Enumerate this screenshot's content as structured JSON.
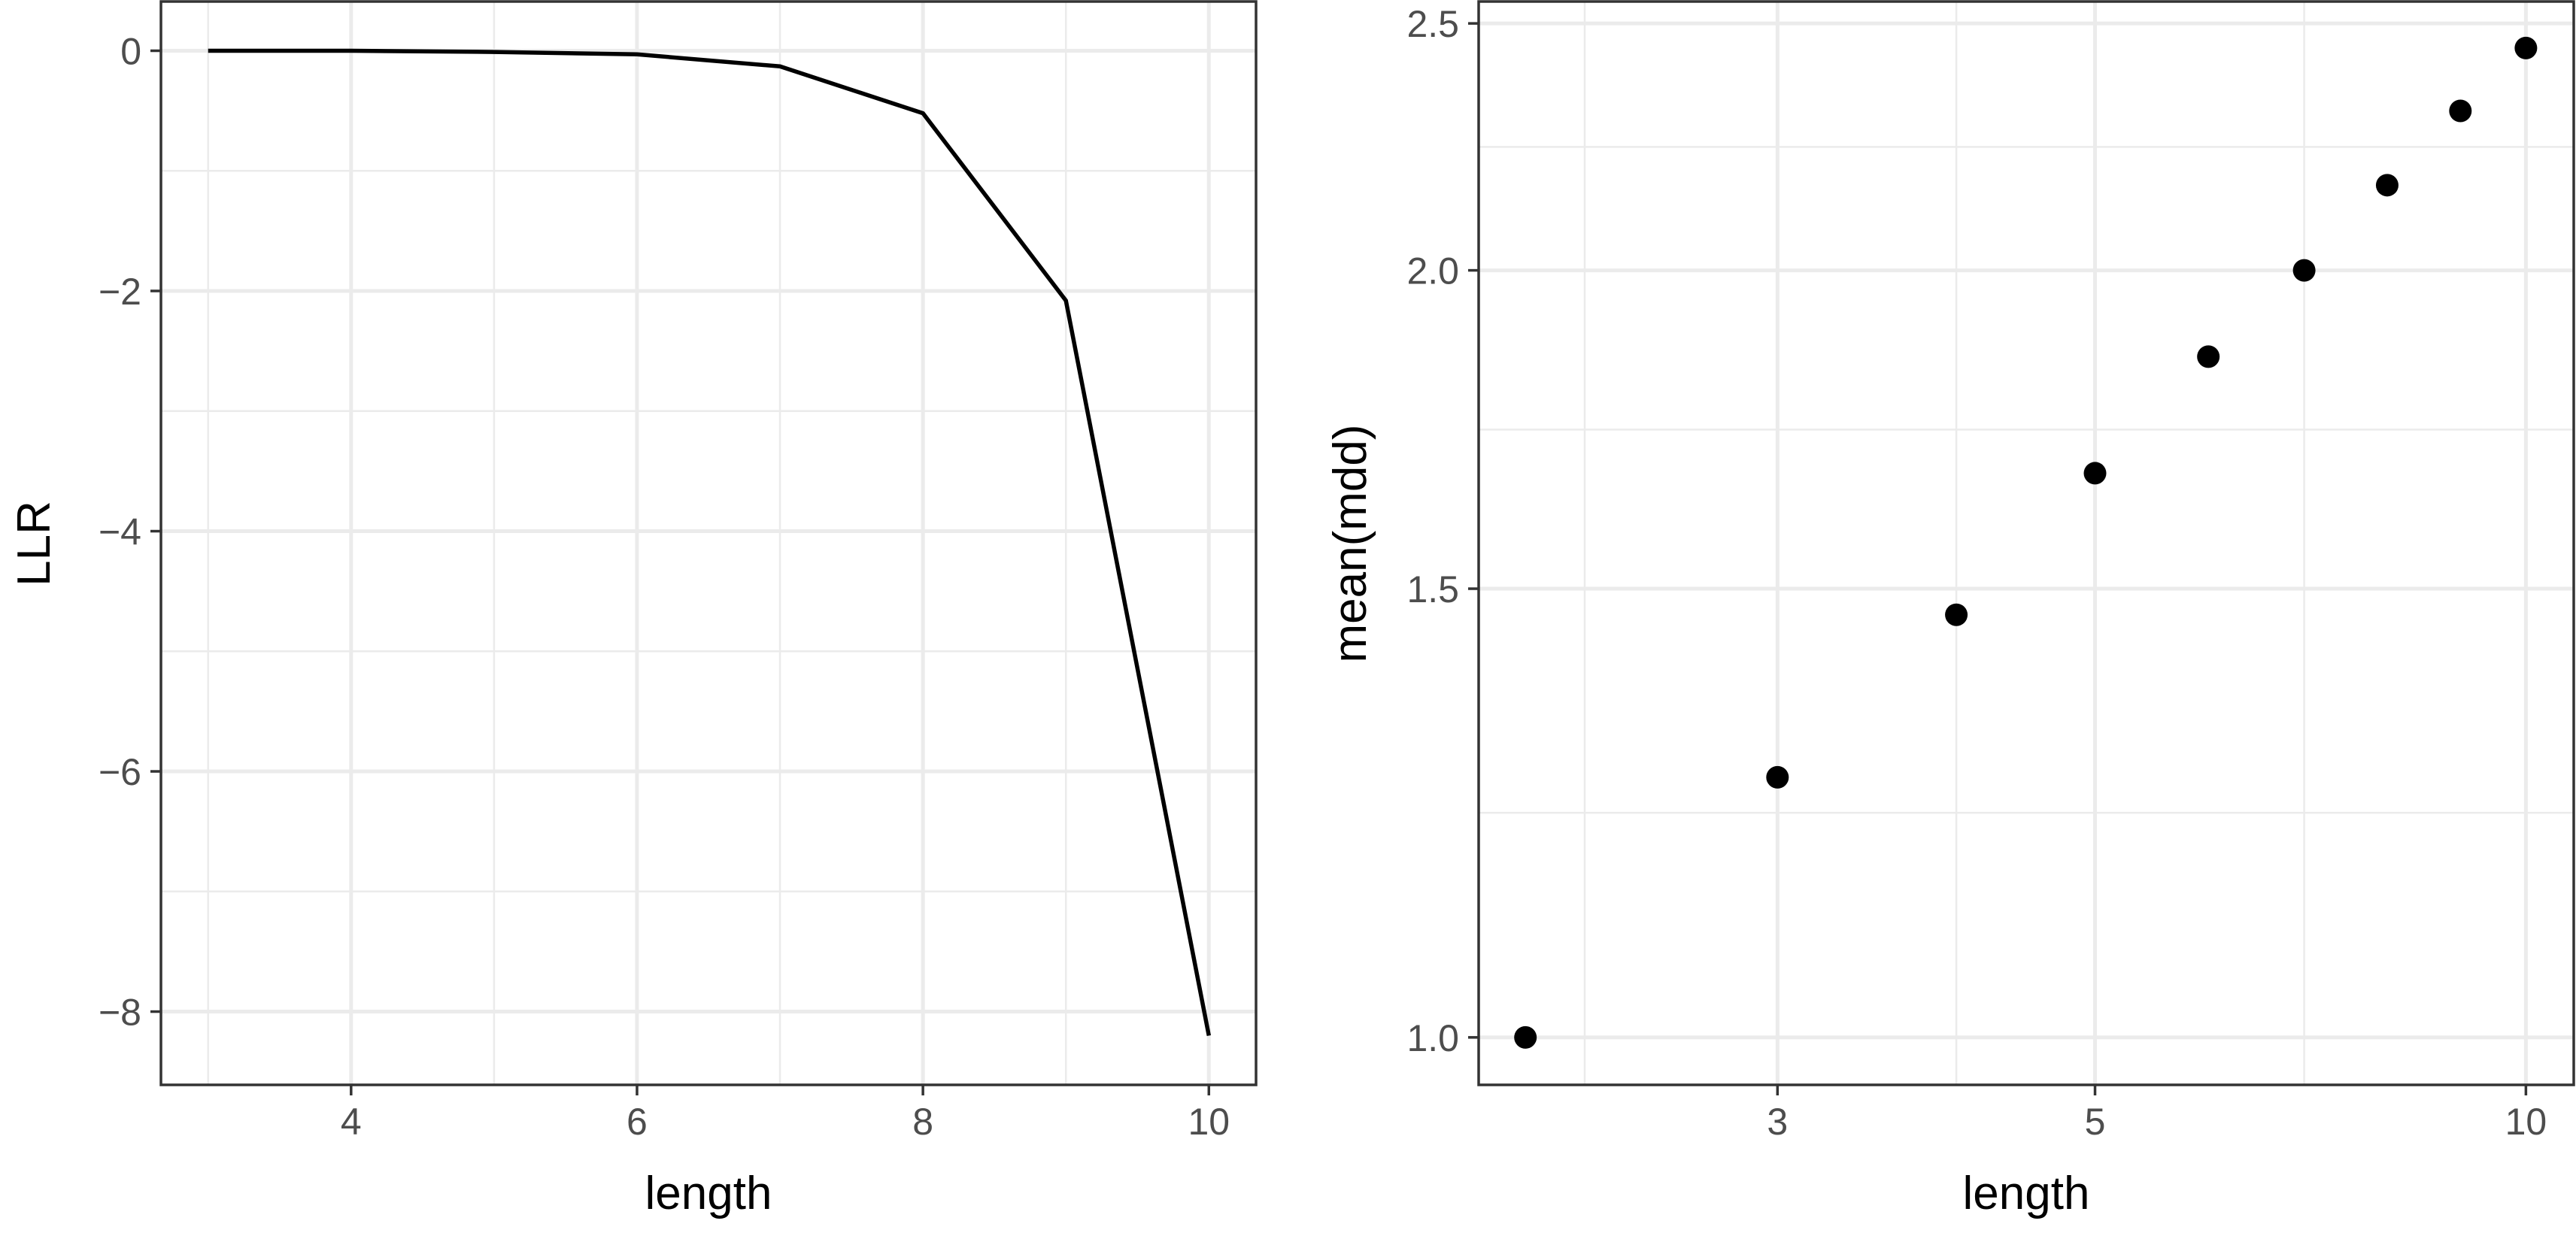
{
  "chart_data": [
    {
      "type": "line",
      "title": "",
      "xlabel": "length",
      "ylabel": "LLR",
      "x": [
        3,
        4,
        5,
        6,
        7,
        8,
        9,
        10
      ],
      "series": [
        {
          "values": [
            0,
            0,
            -0.01,
            -0.03,
            -0.13,
            -0.52,
            -2.08,
            -8.2
          ]
        }
      ],
      "xlim": [
        2.67,
        10.33
      ],
      "ylim": [
        -8.61,
        0.41
      ],
      "xticks": [
        4,
        6,
        8,
        10
      ],
      "xtick_labels": [
        "4",
        "6",
        "8",
        "10"
      ],
      "xminor": [
        3,
        5,
        7,
        9
      ],
      "yticks": [
        0,
        -2,
        -4,
        -6,
        -8
      ],
      "ytick_labels": [
        "0",
        "−2",
        "−4",
        "−6",
        "−8"
      ],
      "yminor": [
        -1,
        -3,
        -5,
        -7
      ],
      "grid": true,
      "legend": "none"
    },
    {
      "type": "scatter",
      "title": "",
      "xlabel": "length",
      "ylabel": "mean(mdd)",
      "x_scale": "log",
      "y_scale": "log",
      "x": [
        2,
        3,
        4,
        5,
        6,
        7,
        8,
        9,
        10
      ],
      "series": [
        {
          "values": [
            1.0,
            1.265,
            1.465,
            1.665,
            1.85,
            2.0,
            2.16,
            2.31,
            2.445
          ]
        }
      ],
      "xlim": [
        1.855,
        10.8
      ],
      "ylim": [
        0.958,
        2.55
      ],
      "xticks": [
        3,
        5,
        10
      ],
      "xtick_labels": [
        "3",
        "5",
        "10"
      ],
      "xminor": [
        2.2,
        4,
        7
      ],
      "yticks": [
        1.0,
        1.5,
        2.0,
        2.5
      ],
      "ytick_labels": [
        "1.0",
        "1.5",
        "2.0",
        "2.5"
      ],
      "yminor": [
        1.225,
        1.732,
        2.236
      ],
      "grid": true,
      "legend": "none"
    }
  ]
}
